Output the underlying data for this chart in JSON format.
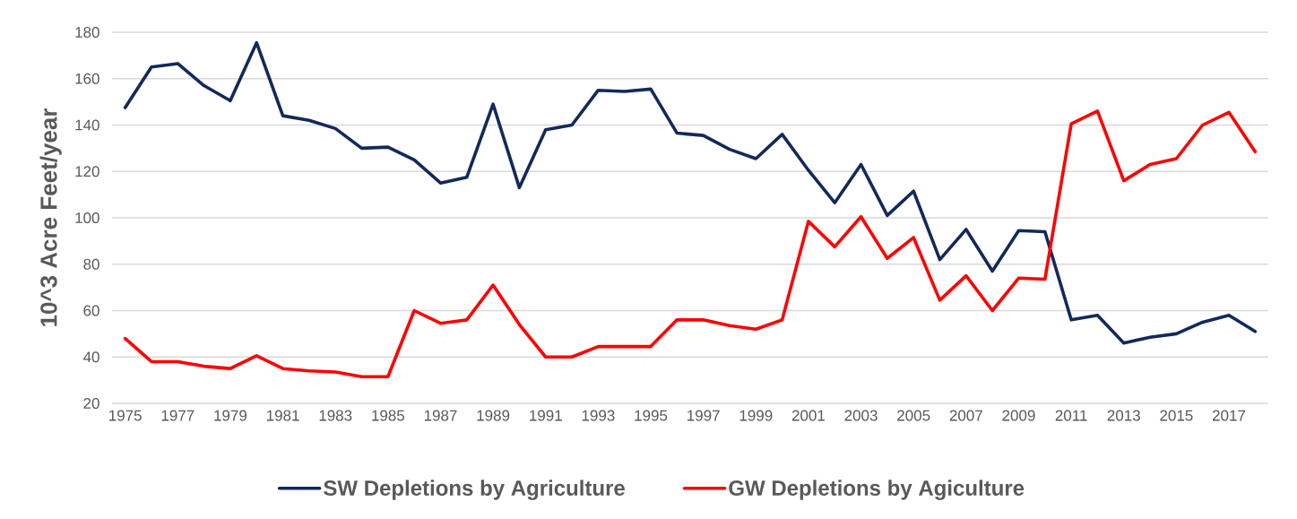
{
  "chart_data": {
    "type": "line",
    "ylabel": "10^3 Acre Feet/year",
    "categories": [
      "1975",
      null,
      "1977",
      null,
      "1979",
      null,
      "1981",
      null,
      "1983",
      null,
      "1985",
      null,
      "1987",
      null,
      "1989",
      null,
      "1991",
      null,
      "1993",
      null,
      "1995",
      null,
      "1997",
      null,
      "1999",
      null,
      "2001",
      null,
      "2003",
      null,
      "2005",
      null,
      "2007",
      null,
      "2009",
      null,
      "2011",
      null,
      "2013",
      null,
      "2015",
      null,
      "2017",
      null
    ],
    "series": [
      {
        "name": "SW Depletions by Agriculture",
        "color": "#13295b",
        "values": [
          147.5,
          165,
          166.5,
          157,
          150.5,
          175.5,
          144,
          142,
          138.5,
          130,
          130.5,
          125,
          115,
          117.5,
          149,
          113,
          138,
          140,
          155,
          154.5,
          155.5,
          136.5,
          135.5,
          129.5,
          125.5,
          136,
          120.5,
          106.5,
          123,
          101,
          111.5,
          82,
          95,
          77,
          94.5,
          94,
          56,
          58,
          46,
          48.5,
          50,
          55,
          58,
          51
        ]
      },
      {
        "name": "GW Depletions by Agiculture",
        "color": "#ff0000",
        "values": [
          48,
          38,
          38,
          36,
          35,
          40.5,
          35,
          34,
          33.5,
          31.5,
          31.5,
          60,
          54.5,
          56,
          71,
          54,
          40,
          40,
          44.5,
          44.5,
          44.5,
          56,
          56,
          53.5,
          52,
          56,
          98.5,
          87.5,
          100.5,
          82.5,
          91.5,
          64.5,
          75,
          60,
          74,
          73.5,
          140.5,
          146,
          116,
          123,
          125.5,
          140,
          145.5,
          128.5
        ]
      }
    ],
    "ylim": [
      20,
      180
    ],
    "yticks": [
      20,
      40,
      60,
      80,
      100,
      120,
      140,
      160,
      180
    ],
    "grid": "y",
    "legend": "bottom"
  }
}
